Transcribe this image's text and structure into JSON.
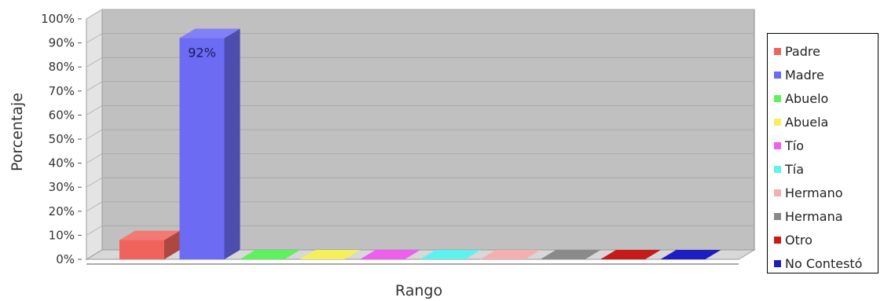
{
  "chart_data": {
    "type": "bar",
    "title": "",
    "xlabel": "Rango",
    "ylabel": "Porcentaje",
    "ylim": [
      0,
      100
    ],
    "yticks": [
      "0%",
      "10%",
      "20%",
      "30%",
      "40%",
      "50%",
      "60%",
      "70%",
      "80%",
      "90%",
      "100%"
    ],
    "legend_position": "right",
    "grid": true,
    "series": [
      {
        "name": "Padre",
        "value": 8,
        "color": "#f0625c"
      },
      {
        "name": "Madre",
        "value": 92,
        "color": "#6b6bf3",
        "data_label": "92%"
      },
      {
        "name": "Abuelo",
        "value": 0,
        "color": "#5ff05f"
      },
      {
        "name": "Abuela",
        "value": 0,
        "color": "#f3f05b"
      },
      {
        "name": "Tío",
        "value": 0,
        "color": "#ee5fee"
      },
      {
        "name": "Tía",
        "value": 0,
        "color": "#5ff0f0"
      },
      {
        "name": "Hermano",
        "value": 0,
        "color": "#f4b0b0"
      },
      {
        "name": "Hermana",
        "value": 0,
        "color": "#8a8a8a"
      },
      {
        "name": "Otro",
        "value": 0,
        "color": "#c51b1b"
      },
      {
        "name": "No Contestó",
        "value": 0,
        "color": "#1e1ec0"
      }
    ]
  }
}
